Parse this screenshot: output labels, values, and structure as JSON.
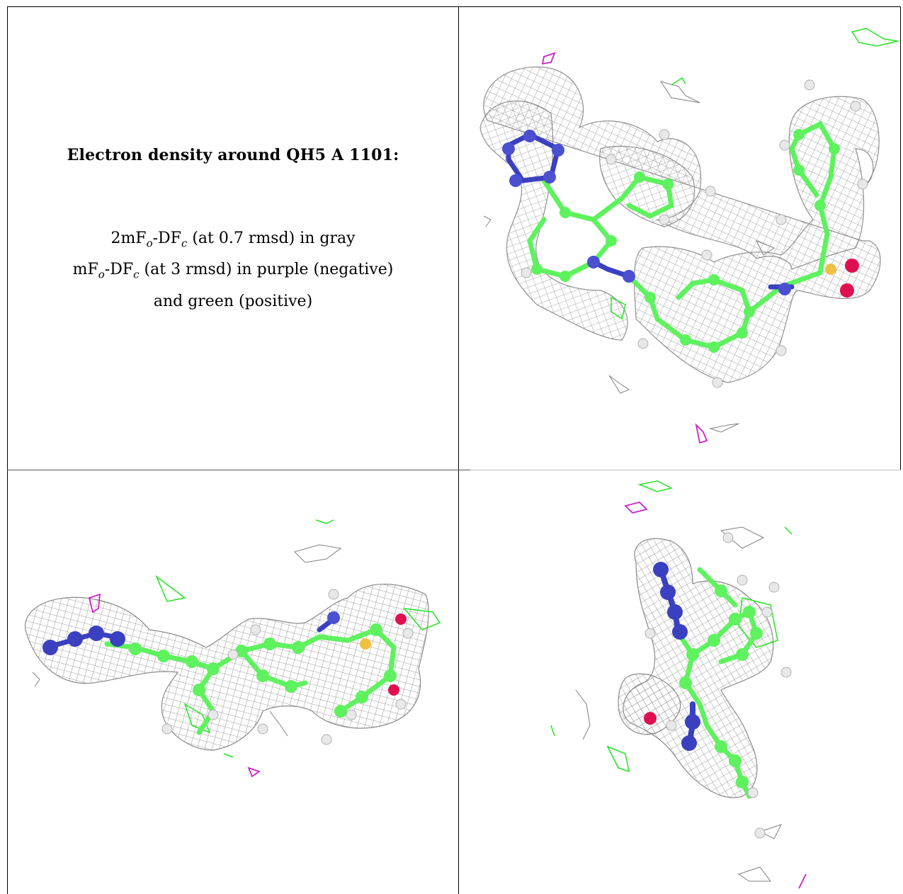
{
  "caption": {
    "title": "Electron density around QH5 A 1101:",
    "lines": [
      {
        "lead": "2mF",
        "sub_o": "o",
        "mid": "-DF",
        "sub_c": "c",
        "tail": " (at 0.7 rmsd) in gray"
      },
      {
        "lead": "mF",
        "sub_o": "o",
        "mid": "-DF",
        "sub_c": "c",
        "tail": " (at 3 rmsd) in purple (negative)"
      },
      {
        "text": "and green (positive)"
      }
    ]
  },
  "panels": [
    {
      "name": "density-view-top-right"
    },
    {
      "name": "density-view-bottom-left"
    },
    {
      "name": "density-view-bottom-right"
    }
  ],
  "colors": {
    "mesh_gray": "#9a9a9a",
    "positive_green": "#22e622",
    "negative_purple": "#d020c8",
    "carbon_green": "#5ef25e",
    "nitrogen_blue": "#3a40c0",
    "oxygen_red": "#e01050",
    "sulfur_yellow": "#f0c040",
    "hydrogen_white": "#e8e8e8"
  }
}
